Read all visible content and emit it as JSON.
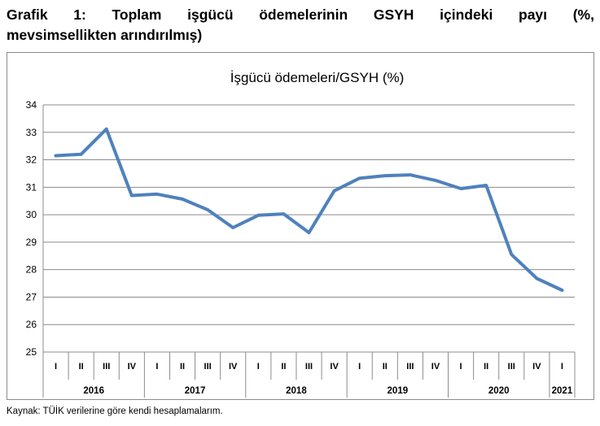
{
  "figure": {
    "title_words": [
      "Grafik",
      "1:",
      "Toplam",
      "işgücü",
      "ödemelerinin",
      "GSYH",
      "içindeki",
      "payı",
      "(%,"
    ],
    "title_line2": "mevsimsellikten arındırılmış)",
    "source": "Kaynak: TÜİK verilerine göre kendi hesaplamalarım."
  },
  "colors": {
    "line": "#4f81bd",
    "grid": "#8c8c8c",
    "axis": "#8c8c8c"
  },
  "chart_data": {
    "type": "line",
    "title": "İşgücü ödemeleri/GSYH (%)",
    "xlabel": "",
    "ylabel": "",
    "ylim": [
      25,
      34
    ],
    "yticks": [
      25,
      26,
      27,
      28,
      29,
      30,
      31,
      32,
      33,
      34
    ],
    "grid": true,
    "legend": "none",
    "quarters": [
      "I",
      "II",
      "III",
      "IV",
      "I",
      "II",
      "III",
      "IV",
      "I",
      "II",
      "III",
      "IV",
      "I",
      "II",
      "III",
      "IV",
      "I",
      "II",
      "III",
      "IV",
      "I"
    ],
    "years": [
      {
        "label": "2016",
        "count": 4
      },
      {
        "label": "2017",
        "count": 4
      },
      {
        "label": "2018",
        "count": 4
      },
      {
        "label": "2019",
        "count": 4
      },
      {
        "label": "2020",
        "count": 4
      },
      {
        "label": "2021",
        "count": 1
      }
    ],
    "series": [
      {
        "values": [
          32.15,
          32.2,
          33.12,
          30.7,
          30.75,
          30.57,
          30.18,
          29.53,
          29.98,
          30.03,
          29.35,
          30.87,
          31.33,
          31.42,
          31.45,
          31.25,
          30.95,
          31.07,
          28.55,
          27.68,
          27.25
        ]
      }
    ]
  }
}
